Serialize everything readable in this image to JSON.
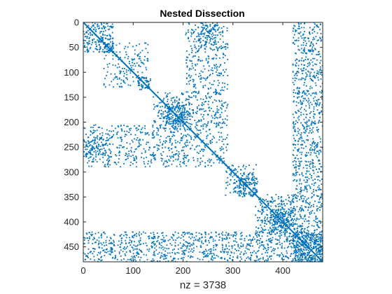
{
  "chart_data": {
    "type": "scatter",
    "title": "Nested Dissection",
    "xlabel": "nz = 3738",
    "ylabel": "",
    "matrix_size": 480,
    "xlim": [
      0,
      480
    ],
    "ylim": [
      480,
      0
    ],
    "y_axis_reversed": true,
    "grid": false,
    "box": true,
    "marker_color": "#0072BD",
    "x_ticks": [
      0,
      100,
      200,
      300,
      400
    ],
    "x_tick_labels": [
      "0",
      "100",
      "200",
      "300",
      "400"
    ],
    "y_ticks": [
      0,
      50,
      100,
      150,
      200,
      250,
      300,
      350,
      400,
      450
    ],
    "y_tick_labels": [
      "0",
      "50",
      "100",
      "150",
      "200",
      "250",
      "300",
      "350",
      "400",
      "450"
    ],
    "nz": 3738,
    "sparsity_regions": [
      {
        "rows": [
          0,
          60
        ],
        "cols": [
          0,
          60
        ],
        "density": 0.05
      },
      {
        "rows": [
          40,
          60
        ],
        "cols": [
          40,
          62
        ],
        "density": 0.12
      },
      {
        "rows": [
          65,
          130
        ],
        "cols": [
          40,
          135
        ],
        "density": 0.025
      },
      {
        "rows": [
          110,
          130
        ],
        "cols": [
          110,
          135
        ],
        "density": 0.09
      },
      {
        "rows": [
          140,
          290
        ],
        "cols": [
          140,
          280
        ],
        "density": 0.028
      },
      {
        "rows": [
          160,
          205
        ],
        "cols": [
          165,
          215
        ],
        "density": 0.09
      },
      {
        "rows": [
          0,
          145
        ],
        "cols": [
          205,
          285
        ],
        "density": 0.022
      },
      {
        "rows": [
          0,
          60
        ],
        "cols": [
          230,
          285
        ],
        "density": 0.04
      },
      {
        "rows": [
          205,
          290
        ],
        "cols": [
          0,
          140
        ],
        "density": 0.022
      },
      {
        "rows": [
          230,
          265
        ],
        "cols": [
          0,
          60
        ],
        "density": 0.05
      },
      {
        "rows": [
          285,
          345
        ],
        "cols": [
          285,
          350
        ],
        "density": 0.035
      },
      {
        "rows": [
          305,
          345
        ],
        "cols": [
          310,
          350
        ],
        "density": 0.06
      },
      {
        "rows": [
          345,
          425
        ],
        "cols": [
          350,
          420
        ],
        "density": 0.04
      },
      {
        "rows": [
          375,
          425
        ],
        "cols": [
          380,
          420
        ],
        "density": 0.08
      },
      {
        "rows": [
          0,
          480
        ],
        "cols": [
          420,
          480
        ],
        "density": 0.035
      },
      {
        "rows": [
          420,
          480
        ],
        "cols": [
          0,
          480
        ],
        "density": 0.035
      },
      {
        "rows": [
          420,
          480
        ],
        "cols": [
          420,
          480
        ],
        "density": 0.05
      }
    ]
  }
}
